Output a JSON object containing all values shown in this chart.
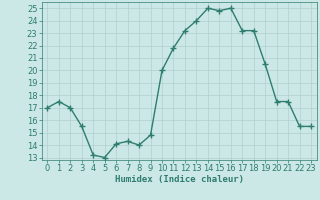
{
  "x": [
    0,
    1,
    2,
    3,
    4,
    5,
    6,
    7,
    8,
    9,
    10,
    11,
    12,
    13,
    14,
    15,
    16,
    17,
    18,
    19,
    20,
    21,
    22,
    23
  ],
  "y": [
    17,
    17.5,
    17,
    15.5,
    13.2,
    13,
    14.1,
    14.3,
    14,
    14.8,
    20,
    21.8,
    23.2,
    24,
    25,
    24.8,
    25,
    23.2,
    23.2,
    20.5,
    17.5,
    17.5,
    15.5,
    15.5
  ],
  "xlabel": "Humidex (Indice chaleur)",
  "xlim": [
    -0.5,
    23.5
  ],
  "ylim": [
    12.8,
    25.5
  ],
  "yticks": [
    13,
    14,
    15,
    16,
    17,
    18,
    19,
    20,
    21,
    22,
    23,
    24,
    25
  ],
  "xticks": [
    0,
    1,
    2,
    3,
    4,
    5,
    6,
    7,
    8,
    9,
    10,
    11,
    12,
    13,
    14,
    15,
    16,
    17,
    18,
    19,
    20,
    21,
    22,
    23
  ],
  "line_color": "#2e7d6e",
  "marker": "+",
  "bg_color": "#cce8e6",
  "grid_color": "#b0cfcd",
  "label_fontsize": 6.5,
  "tick_fontsize": 6,
  "linewidth": 1.0,
  "markersize": 4,
  "markeredgewidth": 1.0
}
